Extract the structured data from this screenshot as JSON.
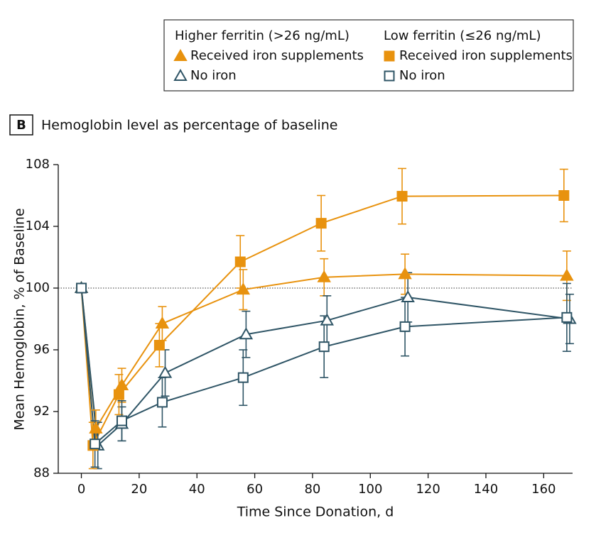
{
  "chart_data": {
    "type": "line",
    "panel_label": "B",
    "title": "Hemoglobin level as percentage of baseline",
    "x_label": "Time Since Donation, d",
    "y_label": "Mean Hemoglobin, % of Baseline",
    "xlim": [
      -8,
      170
    ],
    "xticks": [
      0,
      20,
      40,
      60,
      80,
      100,
      120,
      140,
      160
    ],
    "ylim": [
      88,
      108
    ],
    "yticks": [
      88,
      92,
      96,
      100,
      104,
      108
    ],
    "reference_line": 100,
    "groups": [
      {
        "title": "Higher ferritin (>26 ng/mL)",
        "series": [
          {
            "name": "Received iron supplements",
            "color": "#e8920e",
            "marker": "triangle",
            "filled": true,
            "x": [
              0,
              5,
              14,
              28,
              56,
              84,
              112,
              168
            ],
            "values": [
              100,
              90.9,
              93.7,
              97.7,
              99.9,
              100.7,
              100.9,
              100.8
            ],
            "errors": [
              null,
              1.2,
              1.1,
              1.1,
              1.3,
              1.2,
              1.3,
              1.6
            ]
          },
          {
            "name": "No iron",
            "color": "#2f5566",
            "marker": "triangle",
            "filled": false,
            "x": [
              0,
              5.7,
              14,
              29,
              57,
              85,
              113,
              169
            ],
            "values": [
              100,
              89.8,
              91.2,
              94.5,
              97.0,
              97.9,
              99.4,
              98.0
            ],
            "errors": [
              null,
              1.5,
              1.1,
              1.5,
              1.5,
              1.6,
              1.6,
              1.6
            ]
          }
        ]
      },
      {
        "title": "Low ferritin (≤26 ng/mL)",
        "series": [
          {
            "name": "Received iron supplements",
            "color": "#e8920e",
            "marker": "square",
            "filled": true,
            "x": [
              0,
              4,
              13,
              27,
              55,
              83,
              111,
              167
            ],
            "values": [
              100,
              89.8,
              93.1,
              96.3,
              101.7,
              104.2,
              105.95,
              106.0
            ],
            "errors": [
              null,
              1.5,
              1.3,
              1.4,
              1.7,
              1.8,
              1.8,
              1.7
            ]
          },
          {
            "name": "No iron",
            "color": "#2f5566",
            "marker": "square",
            "filled": false,
            "x": [
              0,
              4.7,
              14,
              28,
              56,
              84,
              112,
              168
            ],
            "values": [
              100,
              89.9,
              91.4,
              92.6,
              94.2,
              96.2,
              97.5,
              98.1
            ],
            "errors": [
              null,
              1.5,
              1.3,
              1.6,
              1.8,
              2.0,
              1.9,
              2.2
            ]
          }
        ]
      }
    ]
  }
}
